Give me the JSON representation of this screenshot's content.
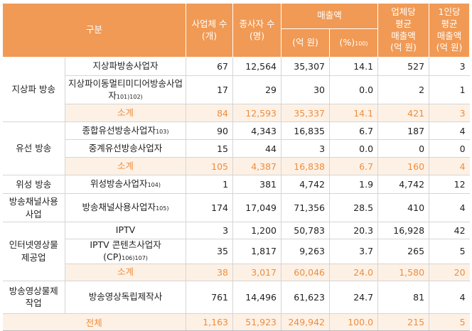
{
  "header": {
    "category": "구분",
    "companies": "사업체 수\n(개)",
    "employees": "종사자 수\n(명)",
    "revenue": "매출액",
    "revenue_unit": "(억 원)",
    "share": "(%)",
    "share_note": "100)",
    "avg_per_company": "업체당\n평균\n매출액\n(억 원)",
    "avg_per_person": "1인당\n평균\n매출액\n(억 원)"
  },
  "groups": {
    "terrestrial": "지상파 방송",
    "cable": "유선 방송",
    "satellite": "위성 방송",
    "pp": "방송채널사용\n사업",
    "iptv": "인터넷영상물\n제공업",
    "production": "방송영상물제\n작업"
  },
  "rows": [
    {
      "name": "지상파방송사업자",
      "note": "",
      "companies": "67",
      "employees": "12,564",
      "revenue": "35,307",
      "share": "14.1",
      "avg_company": "527",
      "avg_person": "3"
    },
    {
      "name": "지상파이동멀티미디어방송사업자",
      "note": "101)102)",
      "companies": "17",
      "employees": "29",
      "revenue": "30",
      "share": "0.0",
      "avg_company": "2",
      "avg_person": "1"
    },
    {
      "name": "소계",
      "note": "",
      "companies": "84",
      "employees": "12,593",
      "revenue": "35,337",
      "share": "14.1",
      "avg_company": "421",
      "avg_person": "3"
    },
    {
      "name": "종합유선방송사업자",
      "note": "103)",
      "companies": "90",
      "employees": "4,343",
      "revenue": "16,835",
      "share": "6.7",
      "avg_company": "187",
      "avg_person": "4"
    },
    {
      "name": "중계유선방송사업자",
      "note": "",
      "companies": "15",
      "employees": "44",
      "revenue": "3",
      "share": "0.0",
      "avg_company": "0",
      "avg_person": "0"
    },
    {
      "name": "소계",
      "note": "",
      "companies": "105",
      "employees": "4,387",
      "revenue": "16,838",
      "share": "6.7",
      "avg_company": "160",
      "avg_person": "4"
    },
    {
      "name": "위성방송사업자",
      "note": "104)",
      "companies": "1",
      "employees": "381",
      "revenue": "4,742",
      "share": "1.9",
      "avg_company": "4,742",
      "avg_person": "12"
    },
    {
      "name": "방송채널사용사업자",
      "note": "105)",
      "companies": "174",
      "employees": "17,049",
      "revenue": "71,356",
      "share": "28.5",
      "avg_company": "410",
      "avg_person": "4"
    },
    {
      "name": "IPTV",
      "note": "",
      "companies": "3",
      "employees": "1,200",
      "revenue": "50,783",
      "share": "20.3",
      "avg_company": "16,928",
      "avg_person": "42"
    },
    {
      "name": "IPTV 콘텐츠사업자(CP)",
      "note": "106)107)",
      "companies": "35",
      "employees": "1,817",
      "revenue": "9,263",
      "share": "3.7",
      "avg_company": "265",
      "avg_person": "5"
    },
    {
      "name": "소계",
      "note": "",
      "companies": "38",
      "employees": "3,017",
      "revenue": "60,046",
      "share": "24.0",
      "avg_company": "1,580",
      "avg_person": "20"
    },
    {
      "name": "방송영상독립제작사",
      "note": "",
      "companies": "761",
      "employees": "14,496",
      "revenue": "61,623",
      "share": "24.7",
      "avg_company": "81",
      "avg_person": "4"
    },
    {
      "name": "전체",
      "note": "",
      "companies": "1,163",
      "employees": "51,923",
      "revenue": "249,942",
      "share": "100.0",
      "avg_company": "215",
      "avg_person": "5"
    }
  ],
  "colors": {
    "header_bg": "#f09a55",
    "subtotal_text": "#ef8d3b",
    "subtotal_bg": "#fdf1e6"
  }
}
